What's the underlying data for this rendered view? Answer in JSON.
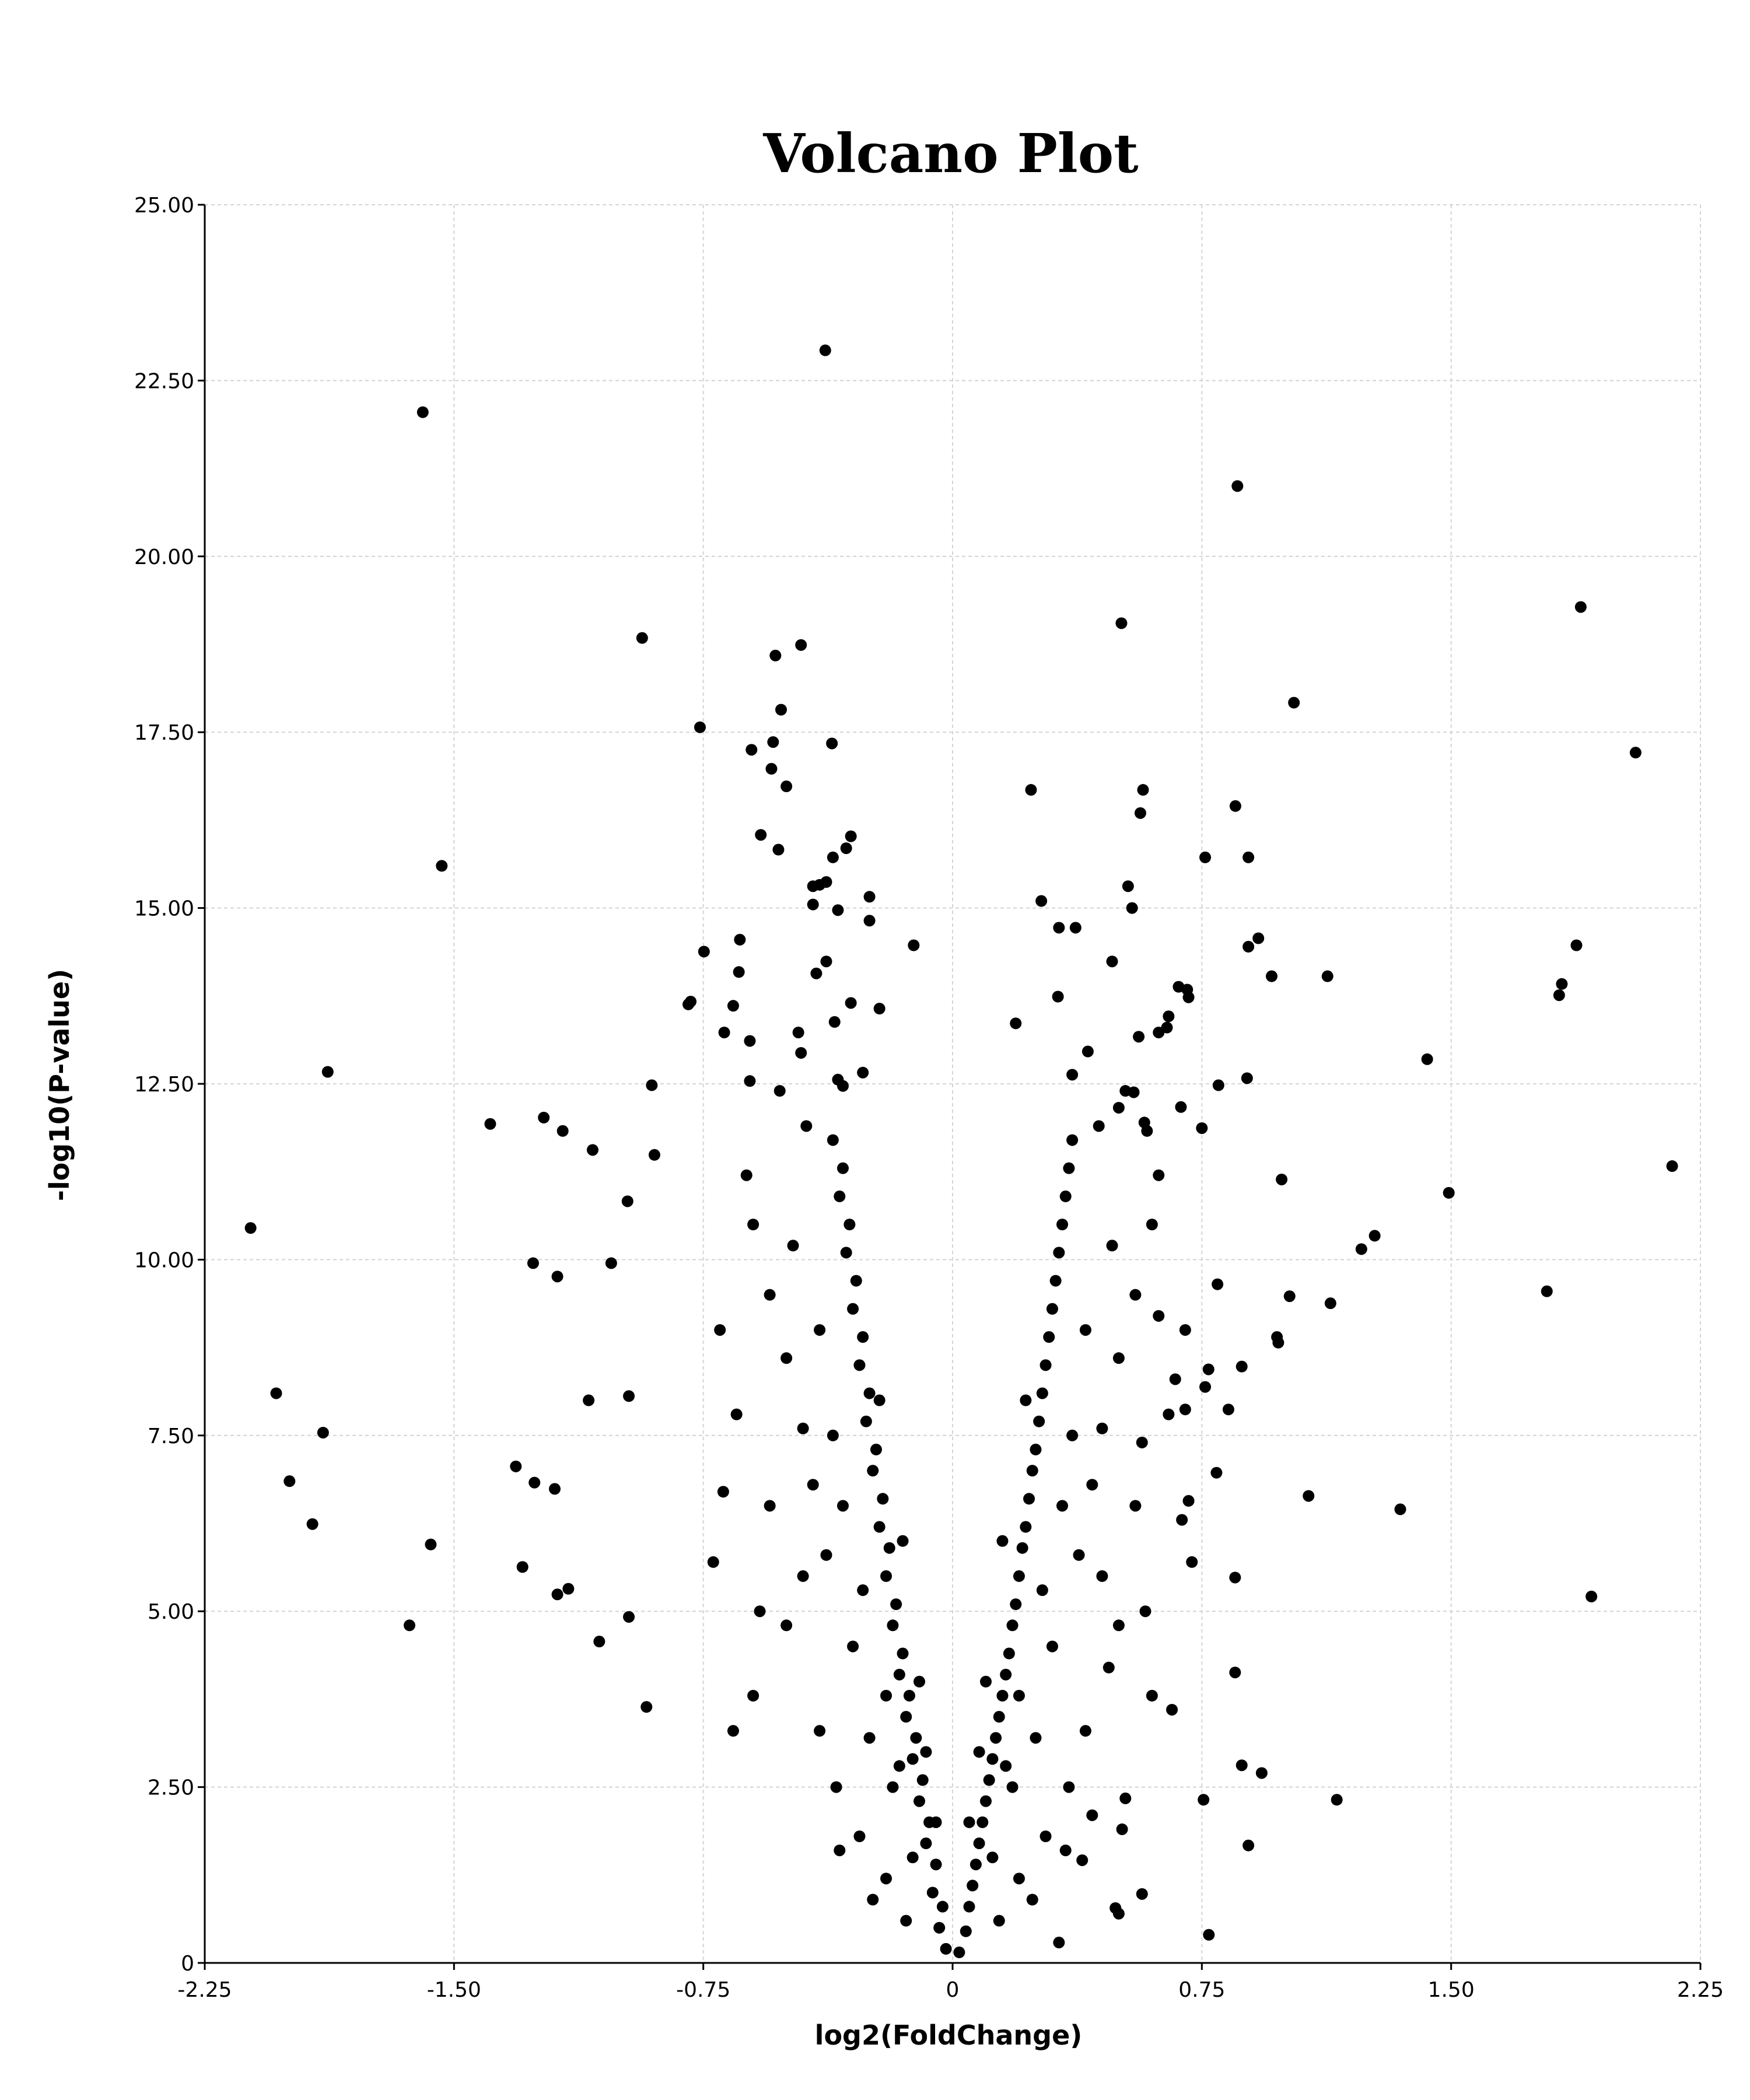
{
  "chart_data": {
    "type": "scatter",
    "title": "Volcano Plot",
    "xlabel": "log2(FoldChange)",
    "ylabel": "-log10(P-value)",
    "xlim": [
      -2.25,
      2.25
    ],
    "ylim": [
      0,
      25
    ],
    "xticks": [
      "-2.25",
      "-1.50",
      "-0.75",
      "0",
      "0.75",
      "1.50",
      "2.25"
    ],
    "xtick_values": [
      -2.25,
      -1.5,
      -0.75,
      0,
      0.75,
      1.5,
      2.25
    ],
    "yticks": [
      "0",
      "2.50",
      "5.00",
      "7.50",
      "10.00",
      "12.50",
      "15.00",
      "17.50",
      "20.00",
      "22.50",
      "25.00"
    ],
    "ytick_values": [
      0,
      2.5,
      5,
      7.5,
      10,
      12.5,
      15,
      17.5,
      20,
      22.5,
      25
    ],
    "grid": true,
    "marker_color": "#000000",
    "points": [
      [
        -1.594,
        22.05
      ],
      [
        -0.383,
        22.93
      ],
      [
        0.857,
        21.0
      ],
      [
        1.89,
        19.28
      ],
      [
        0.508,
        19.05
      ],
      [
        -0.934,
        18.84
      ],
      [
        -0.456,
        18.74
      ],
      [
        -0.533,
        18.59
      ],
      [
        1.027,
        17.92
      ],
      [
        -0.76,
        17.57
      ],
      [
        2.055,
        17.21
      ],
      [
        -1.537,
        15.6
      ],
      [
        -1.88,
        12.67
      ],
      [
        -2.112,
        10.45
      ],
      [
        2.165,
        11.33
      ],
      [
        -2.035,
        8.1
      ],
      [
        -1.894,
        7.54
      ],
      [
        -1.995,
        6.85
      ],
      [
        -1.926,
        6.24
      ],
      [
        -1.634,
        4.8
      ],
      [
        -1.57,
        5.95
      ],
      [
        1.922,
        5.21
      ],
      [
        1.788,
        9.55
      ],
      [
        1.428,
        12.85
      ],
      [
        1.877,
        14.47
      ],
      [
        1.833,
        13.92
      ],
      [
        1.825,
        13.76
      ],
      [
        1.493,
        10.95
      ],
      [
        1.347,
        6.45
      ],
      [
        1.156,
        2.32
      ],
      [
        1.128,
        14.03
      ],
      [
        1.27,
        10.34
      ],
      [
        1.23,
        10.15
      ],
      [
        0.771,
        0.4
      ],
      [
        -1.391,
        11.93
      ],
      [
        -1.23,
        12.02
      ],
      [
        -1.173,
        11.83
      ],
      [
        -1.083,
        11.56
      ],
      [
        -1.262,
        9.95
      ],
      [
        -1.189,
        9.76
      ],
      [
        -1.027,
        9.95
      ],
      [
        -0.978,
        10.83
      ],
      [
        -0.905,
        12.48
      ],
      [
        -0.897,
        11.49
      ],
      [
        -1.095,
        8.0
      ],
      [
        -0.974,
        8.06
      ],
      [
        -1.314,
        7.06
      ],
      [
        -1.258,
        6.83
      ],
      [
        -1.197,
        6.74
      ],
      [
        -1.294,
        5.63
      ],
      [
        -1.189,
        5.24
      ],
      [
        -1.156,
        5.32
      ],
      [
        -1.063,
        4.57
      ],
      [
        -0.974,
        4.92
      ],
      [
        -0.921,
        3.64
      ],
      [
        1.071,
        6.64
      ],
      [
        1.014,
        9.48
      ],
      [
        1.137,
        9.38
      ],
      [
        0.99,
        11.14
      ],
      [
        0.976,
        8.9
      ],
      [
        0.98,
        8.82
      ],
      [
        0.96,
        14.03
      ],
      [
        0.92,
        14.57
      ],
      [
        0.89,
        14.45
      ],
      [
        0.89,
        15.72
      ],
      [
        0.851,
        16.45
      ],
      [
        0.76,
        15.72
      ],
      [
        0.573,
        16.68
      ],
      [
        0.565,
        16.35
      ],
      [
        0.236,
        16.68
      ],
      [
        0.706,
        13.84
      ],
      [
        0.886,
        12.58
      ],
      [
        0.797,
        9.65
      ],
      [
        0.93,
        2.7
      ],
      [
        0.87,
        2.81
      ],
      [
        0.89,
        1.67
      ],
      [
        0.85,
        5.48
      ],
      [
        0.85,
        4.13
      ],
      [
        0.755,
        2.32
      ],
      [
        0.52,
        2.34
      ],
      [
        0.51,
        1.9
      ],
      [
        0.57,
        0.98
      ],
      [
        0.49,
        0.78
      ],
      [
        0.5,
        0.7
      ],
      [
        0.39,
        1.46
      ],
      [
        0.32,
        0.29
      ],
      [
        0.7,
        7.87
      ],
      [
        0.77,
        8.44
      ],
      [
        0.76,
        8.19
      ],
      [
        0.83,
        7.87
      ],
      [
        0.87,
        8.48
      ],
      [
        0.794,
        6.97
      ],
      [
        0.71,
        6.57
      ],
      [
        -0.605,
        17.25
      ],
      [
        -0.54,
        17.36
      ],
      [
        -0.516,
        17.82
      ],
      [
        -0.5,
        16.73
      ],
      [
        -0.545,
        16.98
      ],
      [
        -0.577,
        16.04
      ],
      [
        -0.524,
        15.83
      ],
      [
        -0.363,
        17.34
      ],
      [
        -0.306,
        16.02
      ],
      [
        -0.32,
        15.85
      ],
      [
        -0.36,
        15.72
      ],
      [
        -0.42,
        15.31
      ],
      [
        -0.4,
        15.33
      ],
      [
        -0.38,
        15.37
      ],
      [
        -0.42,
        15.05
      ],
      [
        -0.345,
        14.97
      ],
      [
        -0.25,
        15.16
      ],
      [
        -0.25,
        14.82
      ],
      [
        -0.117,
        14.47
      ],
      [
        -0.38,
        14.24
      ],
      [
        -0.41,
        14.07
      ],
      [
        -0.64,
        14.55
      ],
      [
        -0.748,
        14.38
      ],
      [
        -0.643,
        14.09
      ],
      [
        -0.788,
        13.67
      ],
      [
        -0.795,
        13.63
      ],
      [
        -0.66,
        13.61
      ],
      [
        -0.22,
        13.57
      ],
      [
        -0.306,
        13.65
      ],
      [
        -0.355,
        13.38
      ],
      [
        -0.687,
        13.23
      ],
      [
        -0.61,
        13.11
      ],
      [
        -0.464,
        13.23
      ],
      [
        -0.456,
        12.94
      ],
      [
        -0.27,
        12.66
      ],
      [
        -0.345,
        12.56
      ],
      [
        -0.33,
        12.47
      ],
      [
        -0.61,
        12.54
      ],
      [
        0.528,
        15.31
      ],
      [
        0.54,
        15.0
      ],
      [
        0.267,
        15.1
      ],
      [
        0.32,
        14.72
      ],
      [
        0.37,
        14.72
      ],
      [
        0.48,
        14.24
      ],
      [
        0.317,
        13.74
      ],
      [
        0.19,
        13.36
      ],
      [
        0.56,
        13.17
      ],
      [
        0.62,
        13.23
      ],
      [
        0.645,
        13.3
      ],
      [
        0.65,
        13.46
      ],
      [
        0.68,
        13.88
      ],
      [
        0.71,
        13.73
      ],
      [
        0.407,
        12.96
      ],
      [
        0.36,
        12.63
      ],
      [
        0.545,
        12.38
      ],
      [
        0.5,
        12.16
      ],
      [
        0.687,
        12.17
      ],
      [
        0.75,
        11.87
      ],
      [
        0.8,
        12.48
      ],
      [
        0.577,
        11.95
      ],
      [
        0.585,
        11.83
      ],
      [
        -0.02,
        0.2
      ],
      [
        -0.04,
        0.5
      ],
      [
        -0.03,
        0.8
      ],
      [
        -0.06,
        1.0
      ],
      [
        -0.05,
        1.4
      ],
      [
        -0.08,
        1.7
      ],
      [
        -0.07,
        2.0
      ],
      [
        -0.1,
        2.3
      ],
      [
        -0.09,
        2.6
      ],
      [
        -0.12,
        2.9
      ],
      [
        -0.11,
        3.2
      ],
      [
        -0.14,
        3.5
      ],
      [
        -0.13,
        3.8
      ],
      [
        -0.16,
        4.1
      ],
      [
        -0.15,
        4.4
      ],
      [
        -0.18,
        4.8
      ],
      [
        -0.17,
        5.1
      ],
      [
        -0.2,
        5.5
      ],
      [
        -0.19,
        5.9
      ],
      [
        -0.22,
        6.2
      ],
      [
        -0.21,
        6.6
      ],
      [
        -0.24,
        7.0
      ],
      [
        -0.23,
        7.3
      ],
      [
        -0.26,
        7.7
      ],
      [
        -0.25,
        8.1
      ],
      [
        -0.28,
        8.5
      ],
      [
        -0.27,
        8.9
      ],
      [
        -0.3,
        9.3
      ],
      [
        -0.29,
        9.7
      ],
      [
        -0.32,
        10.1
      ],
      [
        -0.31,
        10.5
      ],
      [
        -0.34,
        10.9
      ],
      [
        -0.33,
        11.3
      ],
      [
        -0.36,
        11.7
      ],
      [
        -0.12,
        1.5
      ],
      [
        -0.18,
        2.5
      ],
      [
        -0.25,
        3.2
      ],
      [
        -0.3,
        4.5
      ],
      [
        -0.38,
        5.8
      ],
      [
        -0.42,
        6.8
      ],
      [
        -0.45,
        7.6
      ],
      [
        -0.5,
        8.6
      ],
      [
        -0.55,
        9.5
      ],
      [
        -0.6,
        10.5
      ],
      [
        -0.62,
        11.2
      ],
      [
        -0.4,
        3.3
      ],
      [
        -0.35,
        2.5
      ],
      [
        -0.28,
        1.8
      ],
      [
        -0.2,
        1.2
      ],
      [
        -0.5,
        4.8
      ],
      [
        -0.55,
        6.5
      ],
      [
        -0.65,
        7.8
      ],
      [
        -0.7,
        9.0
      ],
      [
        -0.45,
        5.5
      ],
      [
        -0.36,
        7.5
      ],
      [
        -0.4,
        9.0
      ],
      [
        -0.48,
        10.2
      ],
      [
        -0.22,
        8.0
      ],
      [
        -0.15,
        6.0
      ],
      [
        -0.1,
        4.0
      ],
      [
        -0.08,
        3.0
      ],
      [
        -0.05,
        2.0
      ],
      [
        -0.44,
        11.9
      ],
      [
        -0.52,
        12.4
      ],
      [
        -0.58,
        5.0
      ],
      [
        -0.6,
        3.8
      ],
      [
        -0.33,
        6.5
      ],
      [
        -0.27,
        5.3
      ],
      [
        -0.2,
        3.8
      ],
      [
        -0.16,
        2.8
      ],
      [
        -0.66,
        3.3
      ],
      [
        -0.72,
        5.7
      ],
      [
        -0.69,
        6.7
      ],
      [
        -0.34,
        1.6
      ],
      [
        -0.24,
        0.9
      ],
      [
        -0.14,
        0.6
      ],
      [
        0.02,
        0.15
      ],
      [
        0.04,
        0.45
      ],
      [
        0.05,
        0.8
      ],
      [
        0.06,
        1.1
      ],
      [
        0.07,
        1.4
      ],
      [
        0.08,
        1.7
      ],
      [
        0.09,
        2.0
      ],
      [
        0.1,
        2.3
      ],
      [
        0.11,
        2.6
      ],
      [
        0.12,
        2.9
      ],
      [
        0.13,
        3.2
      ],
      [
        0.14,
        3.5
      ],
      [
        0.15,
        3.8
      ],
      [
        0.16,
        4.1
      ],
      [
        0.17,
        4.4
      ],
      [
        0.18,
        4.8
      ],
      [
        0.19,
        5.1
      ],
      [
        0.2,
        5.5
      ],
      [
        0.21,
        5.9
      ],
      [
        0.22,
        6.2
      ],
      [
        0.23,
        6.6
      ],
      [
        0.24,
        7.0
      ],
      [
        0.25,
        7.3
      ],
      [
        0.26,
        7.7
      ],
      [
        0.27,
        8.1
      ],
      [
        0.28,
        8.5
      ],
      [
        0.29,
        8.9
      ],
      [
        0.3,
        9.3
      ],
      [
        0.31,
        9.7
      ],
      [
        0.32,
        10.1
      ],
      [
        0.33,
        10.5
      ],
      [
        0.34,
        10.9
      ],
      [
        0.35,
        11.3
      ],
      [
        0.36,
        11.7
      ],
      [
        0.12,
        1.5
      ],
      [
        0.18,
        2.5
      ],
      [
        0.25,
        3.2
      ],
      [
        0.3,
        4.5
      ],
      [
        0.38,
        5.8
      ],
      [
        0.42,
        6.8
      ],
      [
        0.45,
        7.6
      ],
      [
        0.5,
        8.6
      ],
      [
        0.55,
        9.5
      ],
      [
        0.6,
        10.5
      ],
      [
        0.62,
        11.2
      ],
      [
        0.4,
        3.3
      ],
      [
        0.35,
        2.5
      ],
      [
        0.28,
        1.8
      ],
      [
        0.2,
        1.2
      ],
      [
        0.5,
        4.8
      ],
      [
        0.55,
        6.5
      ],
      [
        0.65,
        7.8
      ],
      [
        0.7,
        9.0
      ],
      [
        0.45,
        5.5
      ],
      [
        0.36,
        7.5
      ],
      [
        0.4,
        9.0
      ],
      [
        0.48,
        10.2
      ],
      [
        0.22,
        8.0
      ],
      [
        0.15,
        6.0
      ],
      [
        0.1,
        4.0
      ],
      [
        0.08,
        3.0
      ],
      [
        0.05,
        2.0
      ],
      [
        0.44,
        11.9
      ],
      [
        0.52,
        12.4
      ],
      [
        0.58,
        5.0
      ],
      [
        0.6,
        3.8
      ],
      [
        0.33,
        6.5
      ],
      [
        0.27,
        5.3
      ],
      [
        0.2,
        3.8
      ],
      [
        0.16,
        2.8
      ],
      [
        0.66,
        3.6
      ],
      [
        0.72,
        5.7
      ],
      [
        0.69,
        6.3
      ],
      [
        0.34,
        1.6
      ],
      [
        0.24,
        0.9
      ],
      [
        0.14,
        0.6
      ],
      [
        0.62,
        9.2
      ],
      [
        0.67,
        8.3
      ],
      [
        0.57,
        7.4
      ],
      [
        0.47,
        4.2
      ],
      [
        0.42,
        2.1
      ]
    ]
  }
}
